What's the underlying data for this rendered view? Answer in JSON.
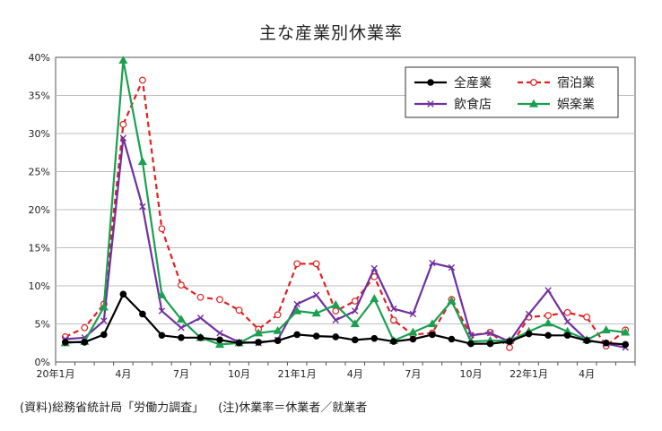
{
  "chart_data": {
    "type": "line",
    "title": "主な産業別休業率",
    "xlabel": "",
    "ylabel": "",
    "ylim": [
      0,
      40
    ],
    "y_ticks": [
      "0%",
      "5%",
      "10%",
      "15%",
      "20%",
      "25%",
      "30%",
      "35%",
      "40%"
    ],
    "x_tick_labels": [
      {
        "index": 0,
        "label": "20年1月"
      },
      {
        "index": 3,
        "label": "4月"
      },
      {
        "index": 6,
        "label": "7月"
      },
      {
        "index": 9,
        "label": "10月"
      },
      {
        "index": 12,
        "label": "21年1月"
      },
      {
        "index": 15,
        "label": "4月"
      },
      {
        "index": 18,
        "label": "7月"
      },
      {
        "index": 21,
        "label": "10月"
      },
      {
        "index": 24,
        "label": "22年1月"
      },
      {
        "index": 27,
        "label": "4月"
      }
    ],
    "grid": true,
    "legend_position": "top-right",
    "series": [
      {
        "name": "全産業",
        "color": "#000000",
        "style": "solid",
        "marker": "filled-circle",
        "values": [
          2.6,
          2.6,
          3.6,
          8.9,
          6.3,
          3.5,
          3.2,
          3.2,
          2.9,
          2.5,
          2.6,
          2.8,
          3.6,
          3.4,
          3.3,
          2.9,
          3.1,
          2.7,
          3.0,
          3.6,
          3.0,
          2.4,
          2.4,
          2.7,
          3.7,
          3.5,
          3.5,
          2.8,
          2.5,
          2.3
        ]
      },
      {
        "name": "宿泊業",
        "color": "#e02020",
        "style": "dashed",
        "marker": "open-circle",
        "values": [
          3.3,
          4.5,
          7.6,
          31.2,
          37.0,
          17.5,
          10.1,
          8.5,
          8.2,
          6.8,
          4.3,
          6.2,
          12.9,
          12.9,
          6.7,
          8.0,
          11.2,
          5.5,
          3.6,
          3.8,
          8.2,
          3.5,
          3.9,
          1.9,
          5.9,
          6.1,
          6.5,
          5.9,
          2.1,
          4.2
        ]
      },
      {
        "name": "飲食店",
        "color": "#7030a0",
        "style": "solid",
        "marker": "x",
        "values": [
          3.0,
          3.2,
          5.4,
          29.4,
          20.4,
          6.7,
          4.5,
          5.8,
          3.8,
          2.6,
          2.5,
          2.9,
          7.6,
          8.8,
          5.5,
          6.7,
          12.3,
          7.0,
          6.3,
          13.0,
          12.4,
          3.5,
          3.8,
          2.7,
          6.3,
          9.4,
          5.3,
          2.9,
          2.4,
          1.9
        ]
      },
      {
        "name": "娯楽業",
        "color": "#1aa050",
        "style": "solid",
        "marker": "triangle",
        "values": [
          2.5,
          2.7,
          7.2,
          39.6,
          26.3,
          8.8,
          5.6,
          3.2,
          2.3,
          2.5,
          3.8,
          4.1,
          6.7,
          6.4,
          7.5,
          5.0,
          8.3,
          2.8,
          3.9,
          5.0,
          8.0,
          2.7,
          2.8,
          2.8,
          4.0,
          5.1,
          4.0,
          2.9,
          4.2,
          3.9
        ]
      }
    ]
  },
  "footnote": {
    "source": "(資料)総務省統計局「労働力調査」",
    "note": "(注)休業率＝休業者／就業者"
  }
}
